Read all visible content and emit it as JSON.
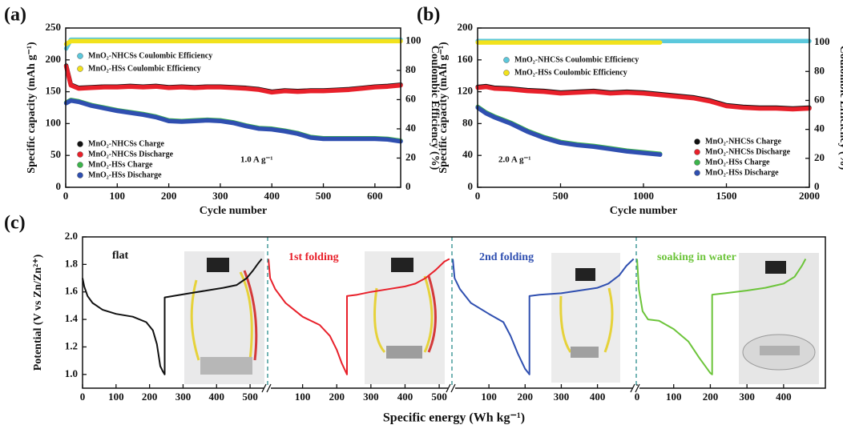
{
  "chart_data": [
    {
      "type": "line",
      "label": "(a)",
      "x_label": "Cycle number",
      "y_label": "Specific capacity (mAh g⁻¹)",
      "y2_label": "Coulombic Efficiency (%)",
      "annotation": "1.0 A g⁻¹",
      "xlim": [
        0,
        650
      ],
      "xticks": [
        0,
        100,
        200,
        300,
        400,
        500,
        600
      ],
      "ylim": [
        0,
        250
      ],
      "yticks": [
        0,
        50,
        100,
        150,
        200,
        250
      ],
      "y2lim": [
        0,
        109
      ],
      "y2ticks": [
        0,
        20,
        40,
        60,
        80,
        100
      ],
      "x": [
        1,
        10,
        25,
        50,
        75,
        100,
        125,
        150,
        175,
        200,
        225,
        250,
        275,
        300,
        325,
        350,
        375,
        400,
        425,
        450,
        475,
        500,
        525,
        550,
        575,
        600,
        625,
        650
      ],
      "series": [
        {
          "name": "MnO₂-NHCSs Charge",
          "color": "#111111",
          "values": [
            191,
            161,
            156,
            157,
            158,
            158,
            159,
            158,
            159,
            157,
            158,
            157,
            158,
            158,
            157,
            156,
            154,
            150,
            152,
            151,
            152,
            152,
            153,
            154,
            156,
            158,
            159,
            161
          ]
        },
        {
          "name": "MnO₂-NHCSs Discharge",
          "color": "#e8202a",
          "values": [
            190,
            160,
            155,
            156,
            157,
            157,
            158,
            157,
            158,
            156,
            157,
            156,
            157,
            157,
            156,
            155,
            153,
            149,
            151,
            150,
            151,
            151,
            152,
            153,
            155,
            157,
            158,
            160
          ]
        },
        {
          "name": "MnO₂-HSs Charge",
          "color": "#3cb44b",
          "values": [
            133,
            137,
            135,
            129,
            125,
            121,
            118,
            115,
            111,
            105,
            104,
            105,
            106,
            105,
            102,
            97,
            93,
            92,
            89,
            85,
            79,
            77,
            77,
            77,
            77,
            77,
            76,
            73
          ]
        },
        {
          "name": "MnO₂-HSs Discharge",
          "color": "#2f4fb0",
          "values": [
            132,
            136,
            134,
            128,
            124,
            120,
            117,
            114,
            110,
            104,
            103,
            104,
            105,
            104,
            101,
            96,
            92,
            91,
            88,
            84,
            78,
            76,
            76,
            76,
            76,
            76,
            75,
            72
          ]
        },
        {
          "name": "MnO₂-NHCSs Coulombic Efficiency",
          "color": "#5bc8dc",
          "axis": "y2",
          "values": [
            95,
            101,
            101,
            101,
            101,
            101,
            101,
            101,
            101,
            101,
            101,
            101,
            101,
            101,
            101,
            101,
            101,
            101,
            101,
            101,
            101,
            101,
            101,
            101,
            101,
            101,
            101,
            101
          ]
        },
        {
          "name": "MnO₂-HSs Coulombic Efficiency",
          "color": "#f2e21c",
          "axis": "y2",
          "values": [
            98,
            100,
            100,
            100,
            100,
            100,
            100,
            100,
            100,
            100,
            100,
            100,
            100,
            100,
            100,
            100,
            100,
            100,
            100,
            100,
            100,
            100,
            100,
            100,
            100,
            100,
            100,
            100
          ]
        }
      ]
    },
    {
      "type": "line",
      "label": "(b)",
      "x_label": "Cycle number",
      "y_label": "Specific capacity (mAh g⁻¹)",
      "y2_label": "Coulombic Efficiency (%)",
      "annotation": "2.0 A g⁻¹",
      "xlim": [
        0,
        2000
      ],
      "xticks": [
        0,
        500,
        1000,
        1500,
        2000
      ],
      "ylim": [
        0,
        200
      ],
      "yticks": [
        0,
        40,
        80,
        120,
        160,
        200
      ],
      "y2lim": [
        0,
        110
      ],
      "y2ticks": [
        0,
        20,
        40,
        60,
        80,
        100
      ],
      "x": [
        1,
        50,
        100,
        200,
        300,
        400,
        500,
        600,
        700,
        800,
        900,
        1000,
        1100,
        1200,
        1300,
        1400,
        1500,
        1600,
        1700,
        1800,
        1900,
        2000
      ],
      "series": [
        {
          "name": "MnO₂-NHCSs Charge",
          "color": "#111111",
          "values": [
            126,
            127,
            125,
            124,
            122,
            121,
            119,
            120,
            121,
            119,
            120,
            119,
            117,
            115,
            113,
            109,
            103,
            101,
            100,
            100,
            99,
            100
          ]
        },
        {
          "name": "MnO₂-NHCSs Discharge",
          "color": "#e8202a",
          "values": [
            125,
            126,
            124,
            123,
            121,
            120,
            118,
            119,
            120,
            118,
            119,
            118,
            116,
            114,
            112,
            108,
            102,
            100,
            99,
            99,
            98,
            99
          ]
        },
        {
          "name": "MnO₂-HSs Charge",
          "color": "#3cb44b",
          "values": [
            101,
            94,
            89,
            81,
            71,
            63,
            57,
            54,
            52,
            49,
            46,
            44,
            42,
            null,
            null,
            null,
            null,
            null,
            null,
            null,
            null,
            null
          ]
        },
        {
          "name": "MnO₂-HSs Discharge",
          "color": "#2f4fb0",
          "values": [
            100,
            93,
            88,
            80,
            70,
            62,
            56,
            53,
            51,
            48,
            45,
            43,
            41,
            null,
            null,
            null,
            null,
            null,
            null,
            null,
            null,
            null
          ]
        },
        {
          "name": "MnO₂-NHCSs Coulombic Efficiency",
          "color": "#5bc8dc",
          "axis": "y2",
          "values": [
            101,
            101,
            101,
            101,
            101,
            101,
            101,
            101,
            101,
            101,
            101,
            101,
            101,
            101,
            101,
            101,
            101,
            101,
            101,
            101,
            101,
            101
          ]
        },
        {
          "name": "MnO₂-HSs Coulombic Efficiency",
          "color": "#f2e21c",
          "axis": "y2",
          "values": [
            100,
            100,
            100,
            100,
            100,
            100,
            100,
            100,
            100,
            100,
            100,
            100,
            100,
            null,
            null,
            null,
            null,
            null,
            null,
            null,
            null,
            null
          ]
        }
      ]
    },
    {
      "type": "segmented-line",
      "label": "(c)",
      "x_label": "Specific energy (Wh kg⁻¹)",
      "y_label": "Potential (V vs Zn/Zn²⁺)",
      "ylim": [
        0.9,
        2.0
      ],
      "yticks": [
        {
          "value": 1.0,
          "label": "1.0"
        },
        1.2,
        1.4,
        1.6,
        1.8,
        {
          "value": 2.0,
          "label": "2.0"
        }
      ],
      "series": [
        {
          "name": "flat",
          "color": "#111111",
          "xlim": [
            0,
            550
          ],
          "xticks": [
            0,
            100,
            200,
            300,
            400,
            500
          ],
          "x": [
            0,
            5,
            15,
            30,
            60,
            100,
            150,
            190,
            210,
            222,
            232,
            240,
            245,
            245,
            270,
            320,
            370,
            420,
            460,
            490,
            510,
            525,
            535
          ],
          "values": [
            1.7,
            1.64,
            1.57,
            1.52,
            1.47,
            1.44,
            1.42,
            1.38,
            1.32,
            1.22,
            1.06,
            1.02,
            1.0,
            1.56,
            1.57,
            1.59,
            1.61,
            1.63,
            1.65,
            1.7,
            1.76,
            1.81,
            1.84
          ]
        },
        {
          "name": "1st folding",
          "color": "#e8202a",
          "xlim": [
            0,
            535
          ],
          "xticks": [
            100,
            200,
            300,
            400,
            500
          ],
          "x": [
            0,
            5,
            20,
            50,
            100,
            150,
            180,
            200,
            215,
            230,
            230,
            260,
            300,
            350,
            400,
            430,
            460,
            490,
            515,
            530
          ],
          "values": [
            1.84,
            1.7,
            1.62,
            1.52,
            1.42,
            1.36,
            1.28,
            1.18,
            1.08,
            1.0,
            1.57,
            1.58,
            1.6,
            1.62,
            1.64,
            1.66,
            1.7,
            1.76,
            1.82,
            1.84
          ]
        },
        {
          "name": "2nd folding",
          "color": "#2f4fb0",
          "xlim": [
            0,
            505
          ],
          "xticks": [
            100,
            200,
            300,
            400
          ],
          "x": [
            0,
            5,
            20,
            50,
            100,
            140,
            160,
            180,
            200,
            212,
            212,
            240,
            300,
            350,
            400,
            430,
            460,
            480,
            500
          ],
          "values": [
            1.84,
            1.7,
            1.62,
            1.52,
            1.44,
            1.38,
            1.28,
            1.15,
            1.04,
            1.0,
            1.57,
            1.58,
            1.59,
            1.61,
            1.63,
            1.66,
            1.72,
            1.79,
            1.84
          ]
        },
        {
          "name": "soaking in water",
          "color": "#6cc43a",
          "xlim": [
            0,
            514
          ],
          "xticks": [
            0,
            100,
            200,
            300,
            400
          ],
          "x": [
            0,
            5,
            15,
            30,
            60,
            100,
            140,
            170,
            200,
            205,
            205,
            240,
            300,
            350,
            400,
            430,
            450,
            460
          ],
          "values": [
            1.84,
            1.62,
            1.46,
            1.4,
            1.39,
            1.33,
            1.24,
            1.12,
            1.01,
            1.0,
            1.58,
            1.59,
            1.61,
            1.63,
            1.66,
            1.71,
            1.79,
            1.84
          ]
        }
      ]
    }
  ]
}
